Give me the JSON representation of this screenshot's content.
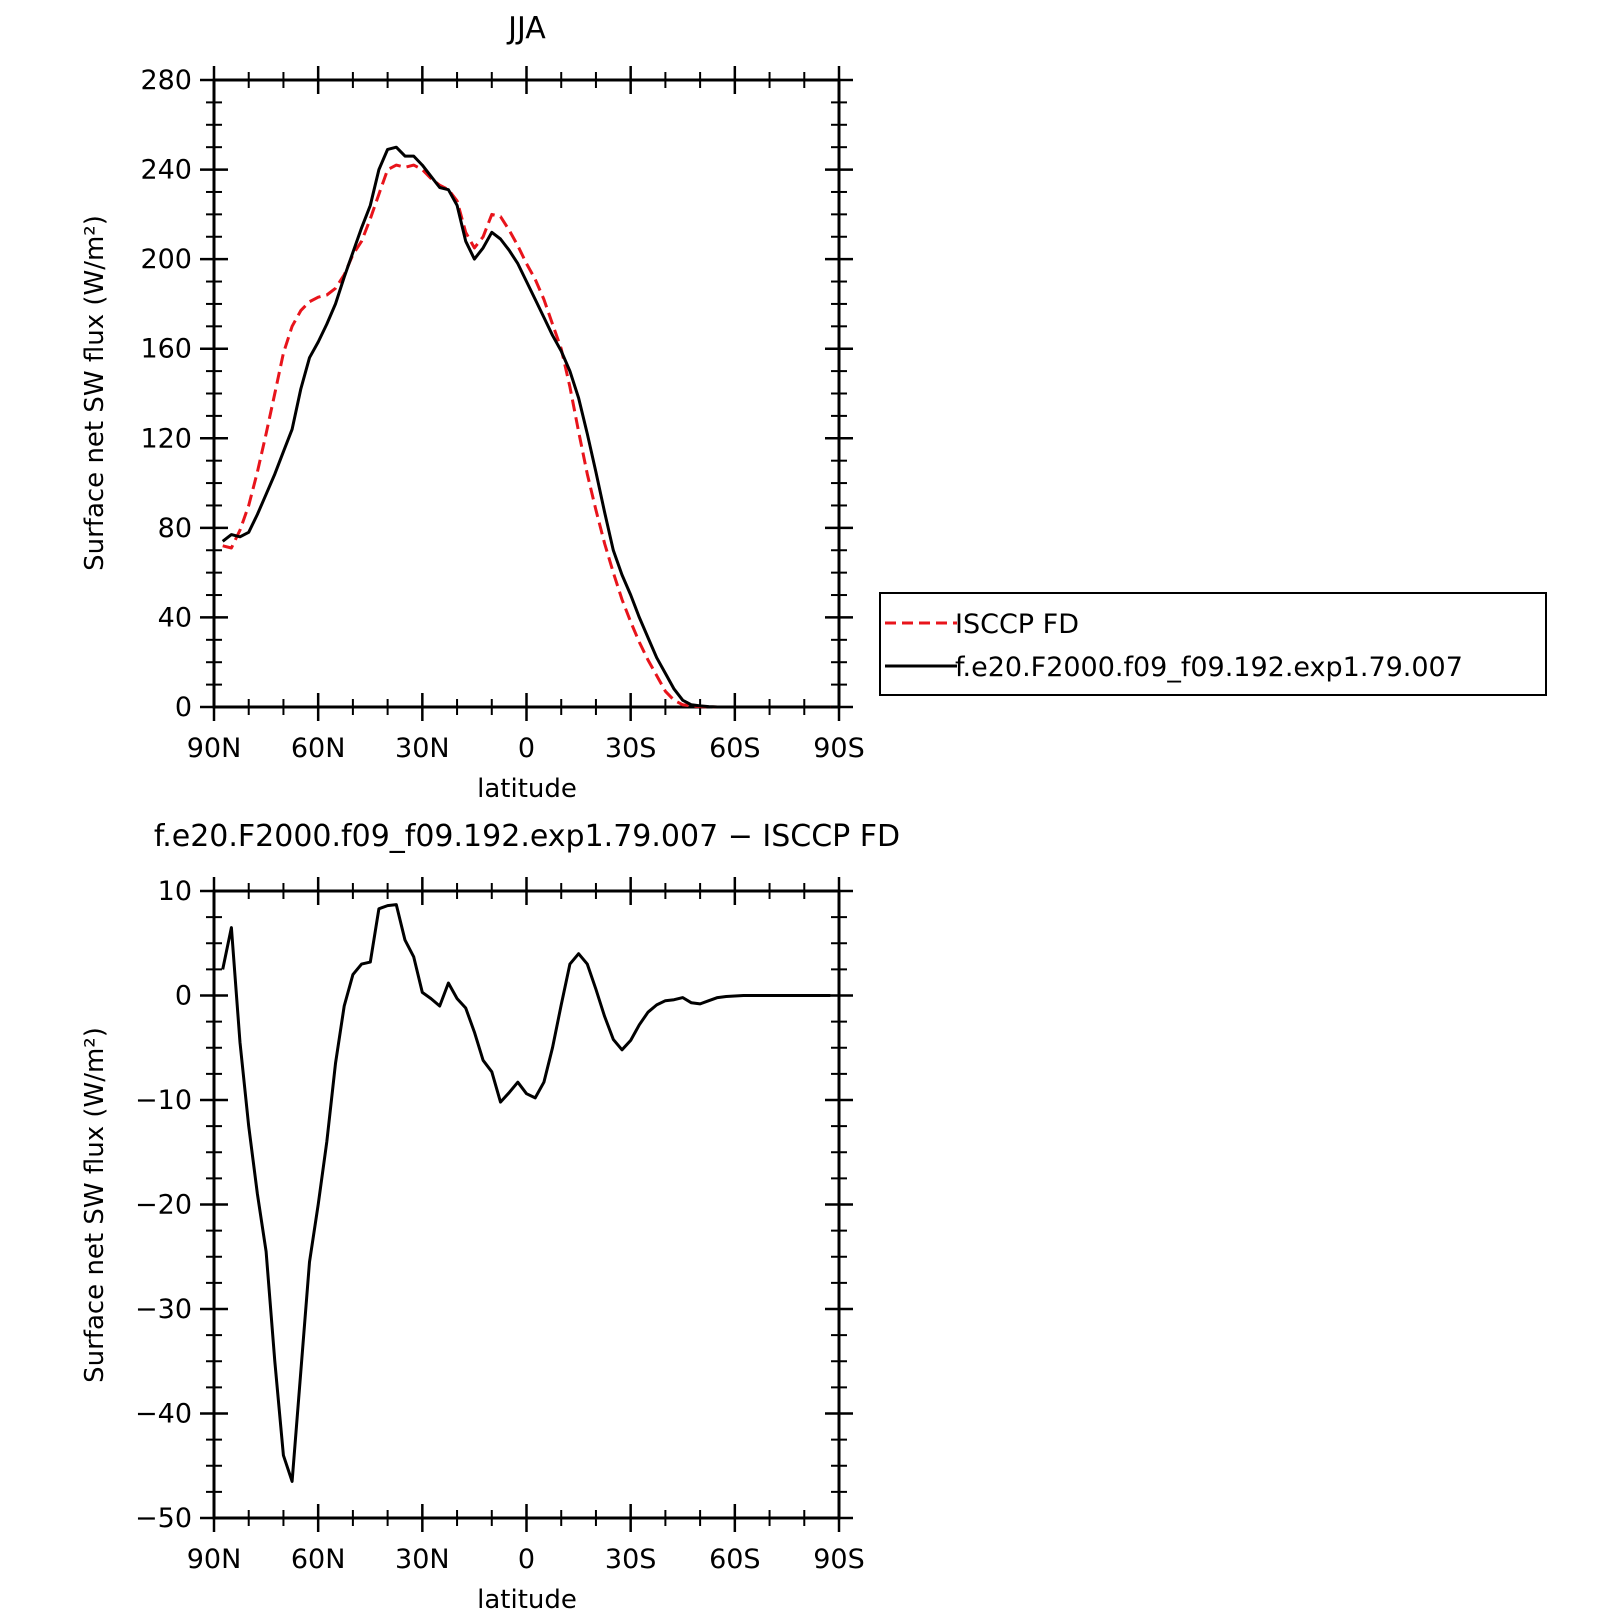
{
  "chart_data": [
    {
      "type": "line",
      "title": "JJA",
      "xlabel": "latitude",
      "ylabel": "Surface net SW flux (W/m²)",
      "xlim": [
        90,
        -90
      ],
      "ylim": [
        0,
        280
      ],
      "x_ticks": [
        90,
        60,
        30,
        0,
        -30,
        -60,
        -90
      ],
      "x_tick_labels": [
        "90N",
        "60N",
        "30N",
        "0",
        "30S",
        "60S",
        "90S"
      ],
      "y_ticks": [
        0,
        40,
        80,
        120,
        160,
        200,
        240,
        280
      ],
      "y_tick_labels": [
        "0",
        "40",
        "80",
        "120",
        "160",
        "200",
        "240",
        "280"
      ],
      "grid": false,
      "legend": {
        "placement": "outside-right"
      },
      "series": [
        {
          "name": "ISCCP FD",
          "color": "#e8141b",
          "dash": "dashed",
          "x": [
            87.5,
            85,
            82.5,
            80,
            77.5,
            75,
            72.5,
            70,
            67.5,
            65,
            62.5,
            60,
            57.5,
            55,
            52.5,
            50,
            47.5,
            45,
            42.5,
            40,
            37.5,
            35,
            32.5,
            30,
            27.5,
            25,
            22.5,
            20,
            17.5,
            15,
            12.5,
            10,
            7.5,
            5,
            2.5,
            0,
            -2.5,
            -5,
            -7.5,
            -10,
            -12.5,
            -15,
            -17.5,
            -20,
            -22.5,
            -25,
            -27.5,
            -30,
            -32.5,
            -35,
            -37.5,
            -40,
            -42.5,
            -45,
            -47.5,
            -50,
            -52.5,
            -55,
            -57.5,
            -60,
            -62.5,
            -65,
            -67.5,
            -70,
            -72.5,
            -75,
            -77.5,
            -80,
            -82.5,
            -85,
            -87.5
          ],
          "values": [
            72,
            71,
            79,
            90,
            105,
            122,
            140,
            158,
            170,
            177,
            181,
            183,
            184,
            187,
            193,
            202,
            208,
            218,
            229,
            240,
            242,
            241,
            242,
            240,
            236,
            233,
            231,
            226,
            212,
            205,
            210,
            220,
            219,
            213,
            206,
            198,
            191,
            182,
            171,
            160,
            143,
            123,
            104,
            88,
            73,
            60,
            48,
            38,
            29,
            21,
            14,
            7,
            3,
            1,
            0.5,
            0.2,
            0.1,
            0,
            0,
            0,
            0,
            0,
            0,
            0,
            0,
            0,
            0,
            0,
            0,
            0,
            0
          ]
        },
        {
          "name": "f.e20.F2000.f09_f09.192.exp1.79.007",
          "color": "#000000",
          "dash": "solid",
          "x": [
            87.5,
            85,
            82.5,
            80,
            77.5,
            75,
            72.5,
            70,
            67.5,
            65,
            62.5,
            60,
            57.5,
            55,
            52.5,
            50,
            47.5,
            45,
            42.5,
            40,
            37.5,
            35,
            32.5,
            30,
            27.5,
            25,
            22.5,
            20,
            17.5,
            15,
            12.5,
            10,
            7.5,
            5,
            2.5,
            0,
            -2.5,
            -5,
            -7.5,
            -10,
            -12.5,
            -15,
            -17.5,
            -20,
            -22.5,
            -25,
            -27.5,
            -30,
            -32.5,
            -35,
            -37.5,
            -40,
            -42.5,
            -45,
            -47.5,
            -50,
            -52.5,
            -55,
            -57.5,
            -60,
            -62.5,
            -65,
            -67.5,
            -70,
            -72.5,
            -75,
            -77.5,
            -80,
            -82.5,
            -85,
            -87.5
          ],
          "values": [
            74,
            77,
            76,
            78,
            86,
            95,
            104,
            114,
            124,
            142,
            156,
            163,
            171,
            180,
            192,
            203,
            214,
            224,
            240,
            249,
            250,
            246,
            246,
            242,
            237,
            232,
            231,
            224,
            208,
            200,
            205,
            212,
            209,
            204,
            198,
            190,
            182,
            174,
            166,
            159,
            150,
            138,
            122,
            105,
            87,
            70,
            59,
            50,
            40,
            31,
            22,
            15,
            8,
            3,
            1,
            0.5,
            0.2,
            0,
            0,
            0,
            0,
            0,
            0,
            0,
            0,
            0,
            0,
            0,
            0,
            0,
            0
          ]
        }
      ]
    },
    {
      "type": "line",
      "title": "f.e20.F2000.f09_f09.192.exp1.79.007 − ISCCP FD",
      "xlabel": "latitude",
      "ylabel": "Surface net SW flux (W/m²)",
      "xlim": [
        90,
        -90
      ],
      "ylim": [
        -50,
        10
      ],
      "x_ticks": [
        90,
        60,
        30,
        0,
        -30,
        -60,
        -90
      ],
      "x_tick_labels": [
        "90N",
        "60N",
        "30N",
        "0",
        "30S",
        "60S",
        "90S"
      ],
      "y_ticks": [
        -50,
        -40,
        -30,
        -20,
        -10,
        0,
        10
      ],
      "y_tick_labels": [
        "−50",
        "−40",
        "−30",
        "−20",
        "−10",
        "0",
        "10"
      ],
      "grid": false,
      "series": [
        {
          "color": "#000000",
          "dash": "solid",
          "x": [
            87.5,
            85,
            82.5,
            80,
            77.5,
            75,
            72.5,
            70,
            67.5,
            65,
            62.5,
            60,
            57.5,
            55,
            52.5,
            50,
            47.5,
            45,
            42.5,
            40,
            37.5,
            35,
            32.5,
            30,
            27.5,
            25,
            22.5,
            20,
            17.5,
            15,
            12.5,
            10,
            7.5,
            5,
            2.5,
            0,
            -2.5,
            -5,
            -7.5,
            -10,
            -12.5,
            -15,
            -17.5,
            -20,
            -22.5,
            -25,
            -27.5,
            -30,
            -32.5,
            -35,
            -37.5,
            -40,
            -42.5,
            -45,
            -47.5,
            -50,
            -52.5,
            -55,
            -57.5,
            -60,
            -62.5,
            -65,
            -67.5,
            -70,
            -72.5,
            -75,
            -77.5,
            -80,
            -82.5,
            -85,
            -87.5
          ],
          "values": [
            2.5,
            6.5,
            -4.5,
            -12.5,
            -19,
            -24.5,
            -35,
            -44,
            -46.5,
            -36,
            -25.5,
            -20,
            -14,
            -6.5,
            -1,
            2,
            3,
            3.2,
            8.3,
            8.6,
            8.7,
            5.3,
            3.7,
            0.3,
            -0.3,
            -1,
            1.2,
            -0.3,
            -1.2,
            -3.5,
            -6.2,
            -7.3,
            -10.2,
            -9.3,
            -8.3,
            -9.4,
            -9.8,
            -8.3,
            -5,
            -0.9,
            3,
            4,
            3,
            0.6,
            -2,
            -4.2,
            -5.2,
            -4.3,
            -2.8,
            -1.6,
            -0.9,
            -0.5,
            -0.4,
            -0.2,
            -0.7,
            -0.8,
            -0.5,
            -0.2,
            -0.1,
            -0.05,
            0,
            0,
            0,
            0,
            0,
            0,
            0,
            0,
            0,
            0,
            0
          ]
        }
      ]
    }
  ]
}
